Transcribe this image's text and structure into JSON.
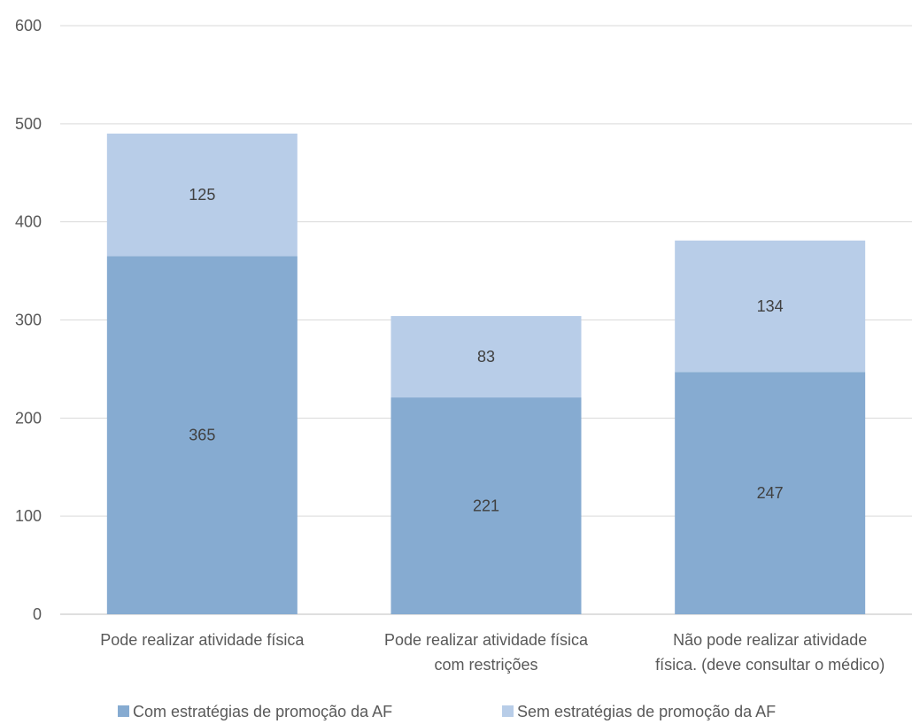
{
  "chart_data": {
    "type": "bar",
    "stacked": true,
    "categories": [
      [
        "Pode realizar atividade física"
      ],
      [
        "Pode realizar atividade física",
        "com restrições"
      ],
      [
        "Não pode realizar atividade",
        "física. (deve consultar o médico)"
      ]
    ],
    "series": [
      {
        "name": "Com estratégias de promoção da AF",
        "values": [
          365,
          221,
          247
        ],
        "color": "#86abd1"
      },
      {
        "name": "Sem estratégias de promoção da AF",
        "values": [
          125,
          83,
          134
        ],
        "color": "#b8cde8"
      }
    ],
    "ylim": [
      0,
      600
    ],
    "yticks": [
      0,
      100,
      200,
      300,
      400,
      500,
      600
    ],
    "grid": true,
    "legend_position": "bottom",
    "title": "",
    "xlabel": "",
    "ylabel": ""
  }
}
